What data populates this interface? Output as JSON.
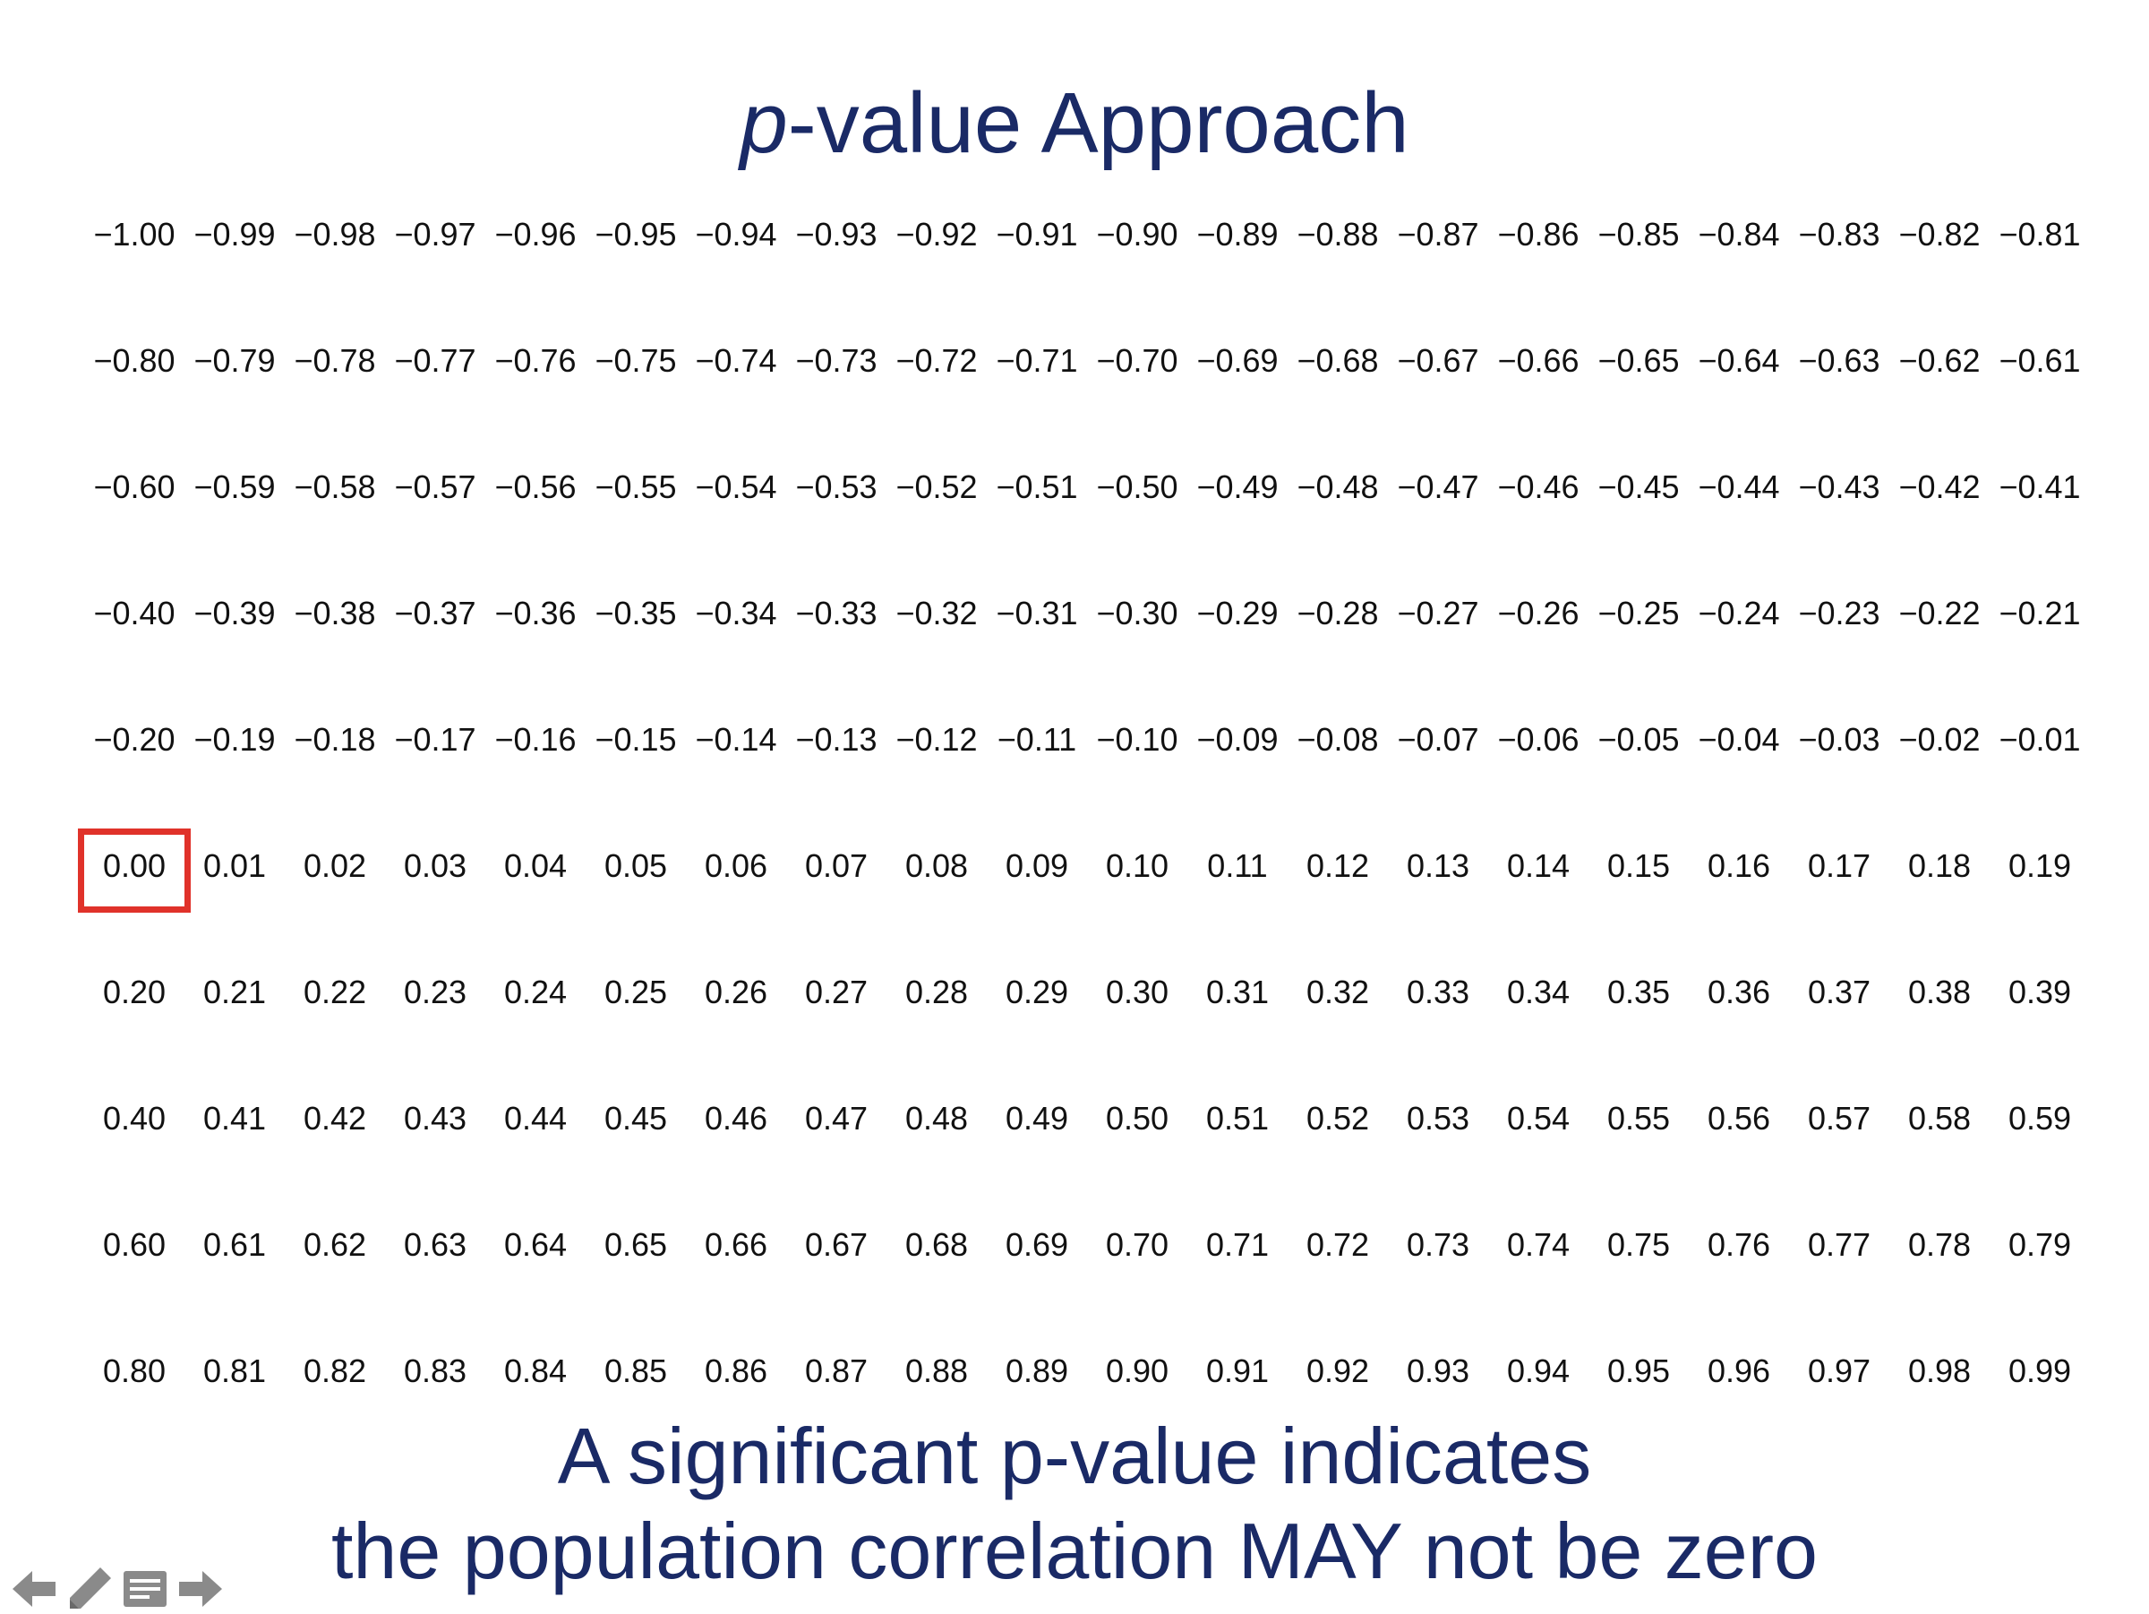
{
  "slide": {
    "title_italic": "p",
    "title_rest": "-value Approach",
    "caption_line1": "A significant p-value indicates",
    "caption_line2": "the population correlation MAY not be zero",
    "highlighted_value": "0.00",
    "highlight_color": "#e0322a",
    "text_color": "#1a2a66"
  },
  "grid": {
    "rows": [
      [
        "−1.00",
        "−0.99",
        "−0.98",
        "−0.97",
        "−0.96",
        "−0.95",
        "−0.94",
        "−0.93",
        "−0.92",
        "−0.91",
        "−0.90",
        "−0.89",
        "−0.88",
        "−0.87",
        "−0.86",
        "−0.85",
        "−0.84",
        "−0.83",
        "−0.82",
        "−0.81"
      ],
      [
        "−0.80",
        "−0.79",
        "−0.78",
        "−0.77",
        "−0.76",
        "−0.75",
        "−0.74",
        "−0.73",
        "−0.72",
        "−0.71",
        "−0.70",
        "−0.69",
        "−0.68",
        "−0.67",
        "−0.66",
        "−0.65",
        "−0.64",
        "−0.63",
        "−0.62",
        "−0.61"
      ],
      [
        "−0.60",
        "−0.59",
        "−0.58",
        "−0.57",
        "−0.56",
        "−0.55",
        "−0.54",
        "−0.53",
        "−0.52",
        "−0.51",
        "−0.50",
        "−0.49",
        "−0.48",
        "−0.47",
        "−0.46",
        "−0.45",
        "−0.44",
        "−0.43",
        "−0.42",
        "−0.41"
      ],
      [
        "−0.40",
        "−0.39",
        "−0.38",
        "−0.37",
        "−0.36",
        "−0.35",
        "−0.34",
        "−0.33",
        "−0.32",
        "−0.31",
        "−0.30",
        "−0.29",
        "−0.28",
        "−0.27",
        "−0.26",
        "−0.25",
        "−0.24",
        "−0.23",
        "−0.22",
        "−0.21"
      ],
      [
        "−0.20",
        "−0.19",
        "−0.18",
        "−0.17",
        "−0.16",
        "−0.15",
        "−0.14",
        "−0.13",
        "−0.12",
        "−0.11",
        "−0.10",
        "−0.09",
        "−0.08",
        "−0.07",
        "−0.06",
        "−0.05",
        "−0.04",
        "−0.03",
        "−0.02",
        "−0.01"
      ],
      [
        "0.00",
        "0.01",
        "0.02",
        "0.03",
        "0.04",
        "0.05",
        "0.06",
        "0.07",
        "0.08",
        "0.09",
        "0.10",
        "0.11",
        "0.12",
        "0.13",
        "0.14",
        "0.15",
        "0.16",
        "0.17",
        "0.18",
        "0.19"
      ],
      [
        "0.20",
        "0.21",
        "0.22",
        "0.23",
        "0.24",
        "0.25",
        "0.26",
        "0.27",
        "0.28",
        "0.29",
        "0.30",
        "0.31",
        "0.32",
        "0.33",
        "0.34",
        "0.35",
        "0.36",
        "0.37",
        "0.38",
        "0.39"
      ],
      [
        "0.40",
        "0.41",
        "0.42",
        "0.43",
        "0.44",
        "0.45",
        "0.46",
        "0.47",
        "0.48",
        "0.49",
        "0.50",
        "0.51",
        "0.52",
        "0.53",
        "0.54",
        "0.55",
        "0.56",
        "0.57",
        "0.58",
        "0.59"
      ],
      [
        "0.60",
        "0.61",
        "0.62",
        "0.63",
        "0.64",
        "0.65",
        "0.66",
        "0.67",
        "0.68",
        "0.69",
        "0.70",
        "0.71",
        "0.72",
        "0.73",
        "0.74",
        "0.75",
        "0.76",
        "0.77",
        "0.78",
        "0.79"
      ],
      [
        "0.80",
        "0.81",
        "0.82",
        "0.83",
        "0.84",
        "0.85",
        "0.86",
        "0.87",
        "0.88",
        "0.89",
        "0.90",
        "0.91",
        "0.92",
        "0.93",
        "0.94",
        "0.95",
        "0.96",
        "0.97",
        "0.98",
        "0.99"
      ]
    ]
  },
  "controls": {
    "items": [
      {
        "icon": "arrow-left-icon"
      },
      {
        "icon": "pencil-icon"
      },
      {
        "icon": "notes-icon"
      },
      {
        "icon": "arrow-right-icon"
      }
    ]
  }
}
